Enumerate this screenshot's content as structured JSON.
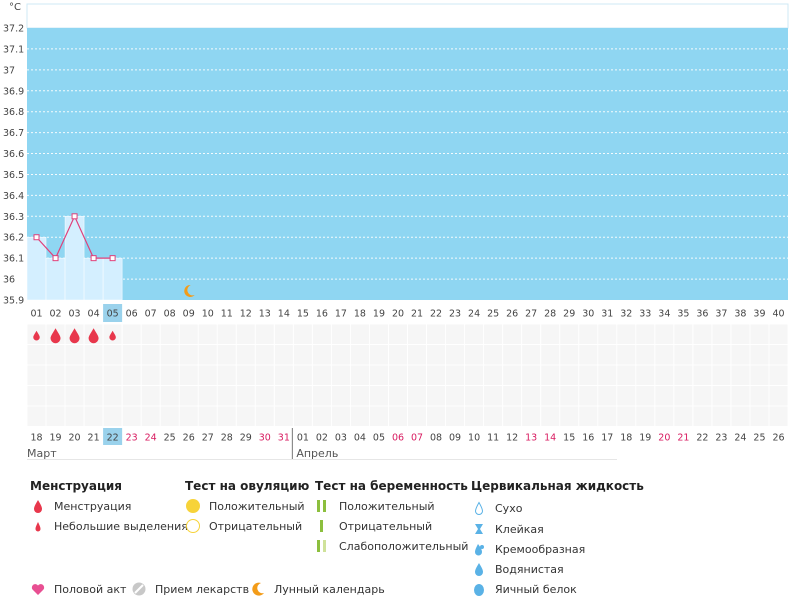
{
  "colors": {
    "plot_bg": "#8fd6f2",
    "plot_top_bg": "#ffffff",
    "past_bar": "#d4efff",
    "line": "#e0407a",
    "highlight": "#9ad2ec",
    "weekend": "#d81b60",
    "grid_dash": "#ffffff",
    "menstr": "#e8374c",
    "pill_yellow": "#f7d339",
    "preg_green": "#8cbf3e",
    "preg_light": "#cfe29a",
    "fluid_blue": "#5ab2e6",
    "moon": "#f39c19",
    "heart": "#e84f92"
  },
  "chart_data": {
    "type": "line",
    "unit_label": "°C",
    "yticks": [
      "37.2",
      "37.1",
      "37",
      "36.9",
      "36.8",
      "36.7",
      "36.6",
      "36.5",
      "36.4",
      "36.3",
      "36.2",
      "36.1",
      "36",
      "35.9"
    ],
    "ylim": [
      35.9,
      37.2
    ],
    "cycle_days": [
      "01",
      "02",
      "03",
      "04",
      "05",
      "06",
      "07",
      "08",
      "09",
      "10",
      "11",
      "12",
      "13",
      "14",
      "15",
      "16",
      "17",
      "18",
      "19",
      "20",
      "21",
      "22",
      "23",
      "24",
      "25",
      "26",
      "27",
      "28",
      "29",
      "30",
      "31",
      "32",
      "33",
      "34",
      "35",
      "36",
      "37",
      "38",
      "39",
      "40"
    ],
    "current_day_index": 4,
    "temperatures": [
      36.2,
      36.1,
      36.3,
      36.1,
      36.1
    ],
    "menstruation": [
      "light",
      "heavy",
      "heavy",
      "heavy",
      "light"
    ],
    "moon_day_index": 8,
    "dates": [
      "18",
      "19",
      "20",
      "21",
      "22",
      "23",
      "24",
      "25",
      "26",
      "27",
      "28",
      "29",
      "30",
      "31",
      "01",
      "02",
      "03",
      "04",
      "05",
      "06",
      "07",
      "08",
      "09",
      "10",
      "11",
      "12",
      "13",
      "14",
      "15",
      "16",
      "17",
      "18",
      "19",
      "20",
      "21",
      "22",
      "23",
      "24",
      "25",
      "26"
    ],
    "weekend_indices": [
      5,
      6,
      12,
      13,
      19,
      20,
      26,
      27,
      33,
      34
    ],
    "months": [
      {
        "label": "Март",
        "start_index": 0
      },
      {
        "label": "Апрель",
        "start_index": 14
      }
    ]
  },
  "legend": {
    "menstruation": {
      "title": "Менструация",
      "items": [
        "Менструация",
        "Небольшие выделения"
      ]
    },
    "ovulation_test": {
      "title": "Тест на овуляцию",
      "items": [
        "Положительный",
        "Отрицательный"
      ]
    },
    "pregnancy_test": {
      "title": "Тест на беременность",
      "items": [
        "Положительный",
        "Отрицательный",
        "Слабоположительный"
      ]
    },
    "cervical_fluid": {
      "title": "Цервикальная жидкость",
      "items": [
        "Сухо",
        "Клейкая",
        "Кремообразная",
        "Водянистая",
        "Яичный белок"
      ]
    },
    "bottom": [
      "Половой акт",
      "Прием лекарств",
      "Лунный календарь"
    ]
  }
}
